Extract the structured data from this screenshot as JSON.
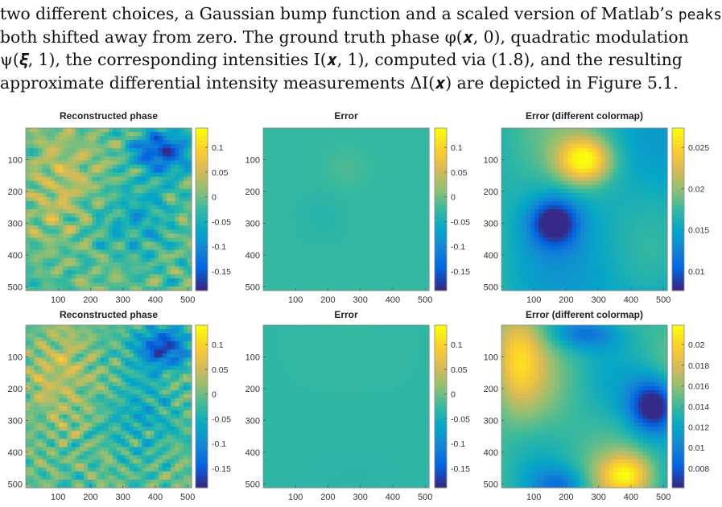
{
  "paragraph": {
    "line1_pre": "two different choices, a Gaussian bump function and a scaled version of Matlab’s ",
    "line1_code": "peaks",
    "line1_post": ",",
    "line2": "both shifted away from zero. The ground truth phase φ(𝒙, 0), quadratic modulation",
    "line3": "ψ(𝝃, 1), the corresponding intensities I(𝒙, 1), computed via (1.8), and the resulting",
    "line4": "approximate differential intensity measurements ΔI(𝒙) are depicted in Figure 5.1."
  },
  "colors": {
    "parula": [
      "#352a87",
      "#0363e1",
      "#1485d4",
      "#06a7c6",
      "#38b99e",
      "#92bf73",
      "#d9ba56",
      "#fcce2e",
      "#f9fb0e"
    ]
  },
  "figure": {
    "axis_ticks": [
      "100",
      "200",
      "300",
      "400",
      "500"
    ],
    "panels": [
      {
        "title": "Reconstructed phase",
        "cbar_ticks": [
          "0.1",
          "0.05",
          "0",
          "-0.05",
          "-0.1",
          "-0.15"
        ],
        "field": "phase",
        "seed": 1
      },
      {
        "title": "Error",
        "cbar_ticks": [
          "0.1",
          "0.05",
          "0",
          "-0.05",
          "-0.1",
          "-0.15"
        ],
        "field": "error_flat_1"
      },
      {
        "title": "Error (different colormap)",
        "cbar_ticks": [
          "0.025",
          "0.02",
          "0.015",
          "0.01"
        ],
        "field": "error_smooth_1"
      },
      {
        "title": "Reconstructed phase",
        "cbar_ticks": [
          "0.1",
          "0.05",
          "0",
          "-0.05",
          "-0.1",
          "-0.15"
        ],
        "field": "phase",
        "seed": 2
      },
      {
        "title": "Error",
        "cbar_ticks": [
          "0.1",
          "0.05",
          "0",
          "-0.05",
          "-0.1",
          "-0.15"
        ],
        "field": "error_flat_2"
      },
      {
        "title": "Error (different colormap)",
        "cbar_ticks": [
          "0.02",
          "0.018",
          "0.016",
          "0.014",
          "0.012",
          "0.01",
          "0.008"
        ],
        "field": "error_smooth_2"
      }
    ]
  }
}
